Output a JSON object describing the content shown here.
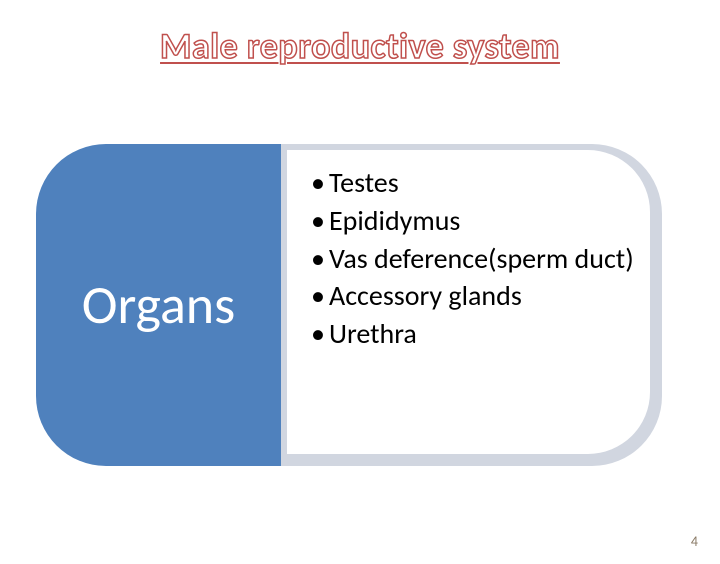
{
  "title": "Male reproductive system",
  "smartart": {
    "leftLabel": "Organs",
    "leftBg": "#4f81bd",
    "rightBg": "#d1d6e0",
    "bullets": [
      "Testes",
      "Epididymus",
      "Vas deference(sperm duct)",
      "Accessory glands",
      "Urethra"
    ]
  },
  "pageNumber": "4",
  "colors": {
    "titleStroke": "#c0504d",
    "background": "#ffffff",
    "leftText": "#ffffff",
    "bulletText": "#000000",
    "pageNumColor": "#8a7a66"
  },
  "fonts": {
    "titleSize": 36,
    "leftLabelSize": 54,
    "bulletSize": 28,
    "pageNumSize": 14
  }
}
